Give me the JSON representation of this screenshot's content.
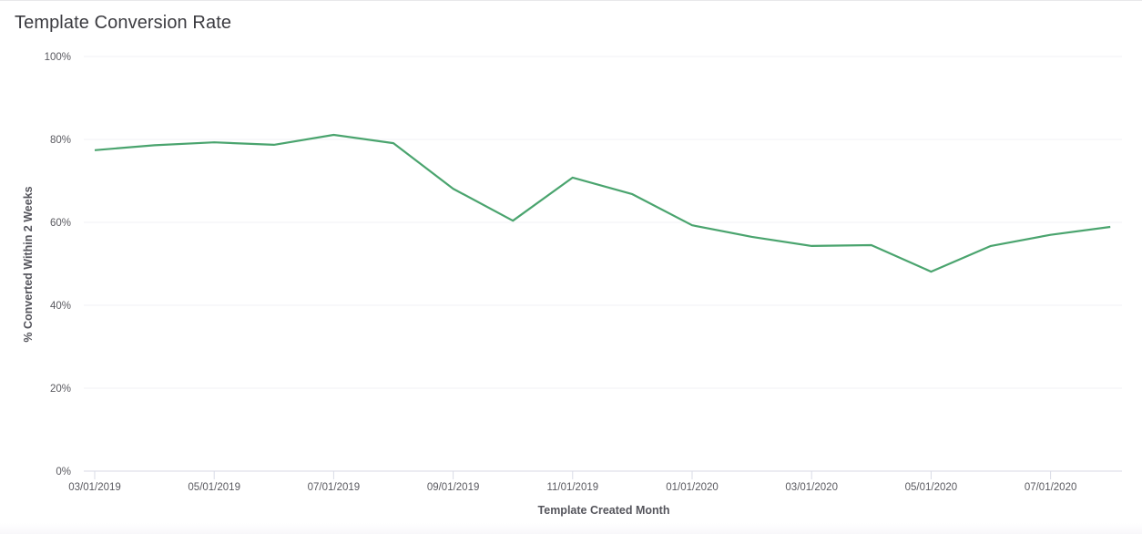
{
  "header": {
    "title": "Template Conversion Rate"
  },
  "chart_data": {
    "type": "line",
    "title": "Template Conversion Rate",
    "xlabel": "Template Created Month",
    "ylabel": "% Converted Within 2 Weeks",
    "ylim": [
      0,
      100
    ],
    "y_ticks": [
      "0%",
      "20%",
      "40%",
      "60%",
      "80%",
      "100%"
    ],
    "x_tick_labels": [
      "03/01/2019",
      "05/01/2019",
      "07/01/2019",
      "09/01/2019",
      "11/01/2019",
      "01/01/2020",
      "03/01/2020",
      "05/01/2020",
      "07/01/2020"
    ],
    "grid": true,
    "legend": "none",
    "series": [
      {
        "name": "% Converted Within 2 Weeks",
        "color": "#4aa46e",
        "x": [
          "03/01/2019",
          "04/01/2019",
          "05/01/2019",
          "06/01/2019",
          "07/01/2019",
          "08/01/2019",
          "09/01/2019",
          "10/01/2019",
          "11/01/2019",
          "12/01/2019",
          "01/01/2020",
          "02/01/2020",
          "03/01/2020",
          "04/01/2020",
          "05/01/2020",
          "06/01/2020",
          "07/01/2020",
          "08/01/2020"
        ],
        "values": [
          77.4,
          78.6,
          79.3,
          78.7,
          81.1,
          79.1,
          68.1,
          60.4,
          70.8,
          66.8,
          59.3,
          56.5,
          54.3,
          54.5,
          48.1,
          54.3,
          57.0,
          58.9
        ]
      }
    ]
  }
}
